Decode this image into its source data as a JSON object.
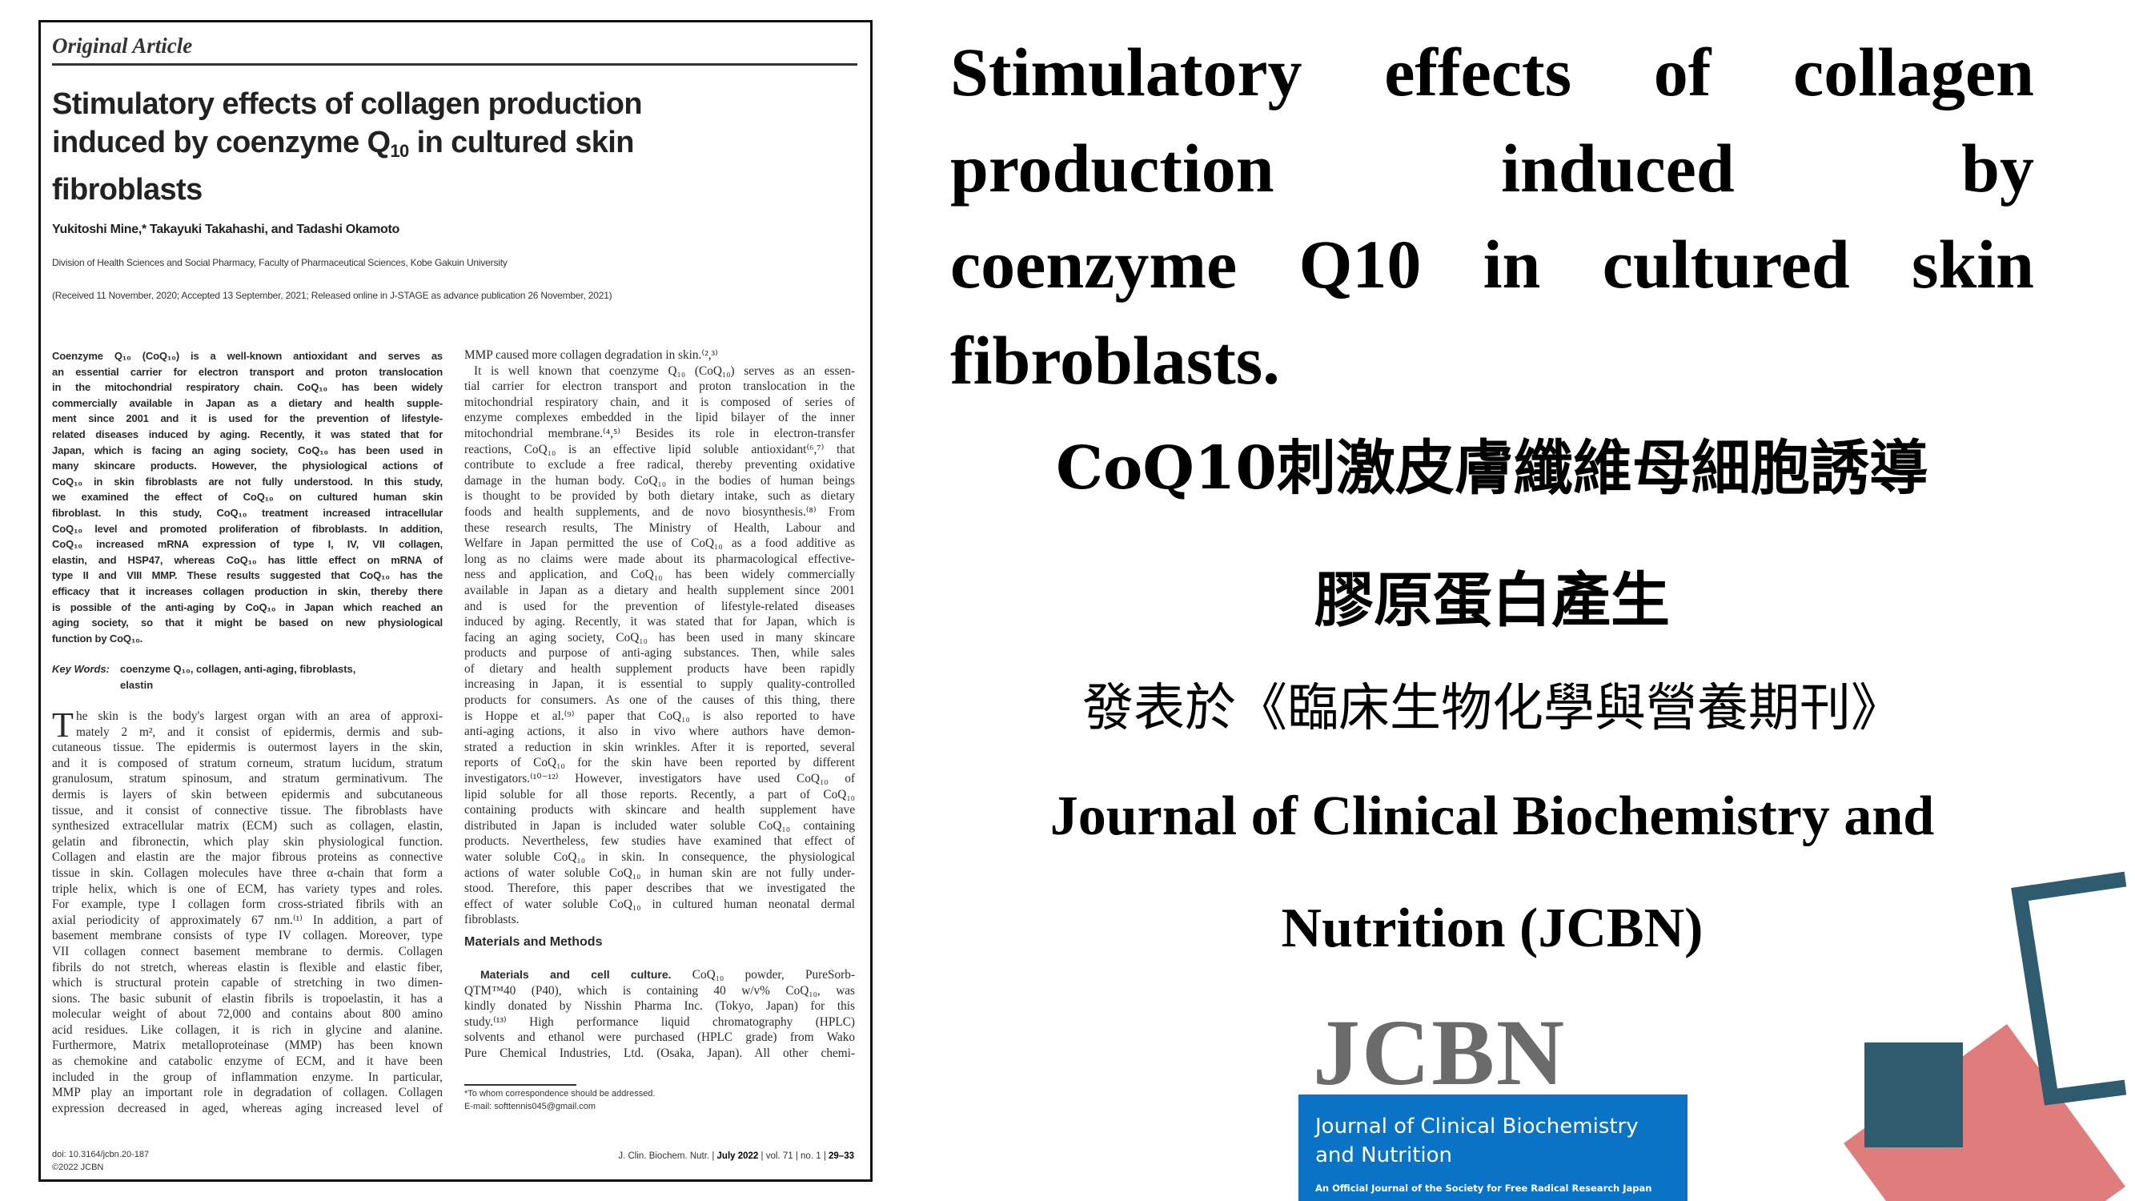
{
  "paper": {
    "kicker": "Original Article",
    "title_lines": [
      "Stimulatory effects of collagen production",
      "induced by coenzyme Q",
      "in cultured skin",
      "fibroblasts"
    ],
    "title_sub": "10",
    "authors": "Yukitoshi Mine,* Takayuki Takahashi, and Tadashi Okamoto",
    "affiliation": "Division of Health Sciences and Social Pharmacy, Faculty of Pharmaceutical Sciences, Kobe Gakuin University",
    "received": "(Received 11 November, 2020; Accepted 13 September, 2021; Released online in J-STAGE as advance publication 26 November, 2021)",
    "abstract": [
      "Coenzyme Q₁₀ (CoQ₁₀) is a well-known antioxidant and serves as",
      "an essential carrier for electron transport and proton translocation",
      "in the mitochondrial respiratory chain. CoQ₁₀ has been widely",
      "commercially available in Japan as a dietary and health supple-",
      "ment since 2001 and it is used for the prevention of lifestyle-",
      "related diseases induced by aging. Recently, it was stated that for",
      "Japan, which is facing an aging society, CoQ₁₀ has been used in",
      "many skincare products. However, the physiological actions of",
      "CoQ₁₀ in skin fibroblasts are not fully understood. In this study,",
      "we examined the effect of CoQ₁₀ on cultured human skin",
      "fibroblast. In this study, CoQ₁₀ treatment increased intracellular",
      "CoQ₁₀ level and promoted proliferation of fibroblasts. In addition,",
      "CoQ₁₀ increased mRNA expression of type I, IV, VII collagen,",
      "elastin, and HSP47, whereas CoQ₁₀ has little effect on mRNA of",
      "type II and VIII MMP. These results suggested that CoQ₁₀ has the",
      "efficacy that it increases collagen production in skin, thereby there",
      "is possible of the anti-aging by CoQ₁₀ in Japan which reached an",
      "aging society, so that it might be based on new physiological",
      "function by CoQ₁₀."
    ],
    "keywords_label": "Key Words:",
    "keywords": [
      "coenzyme Q₁₀, collagen, anti-aging, fibroblasts,",
      "elastin"
    ],
    "dropcap": "T",
    "body_left": [
      "he skin is the body's largest organ with an area of approxi-",
      "mately 2 m², and it consist of epidermis, dermis and sub-",
      "cutaneous tissue. The epidermis is outermost layers in the skin,",
      "and it is composed of stratum corneum, stratum lucidum, stratum",
      "granulosum, stratum spinosum, and stratum germinativum. The",
      "dermis is layers of skin between epidermis and subcutaneous",
      "tissue, and it consist of connective tissue. The fibroblasts have",
      "synthesized extracellular matrix (ECM) such as collagen, elastin,",
      "gelatin and fibronectin, which play skin physiological function.",
      "Collagen and elastin are the major fibrous proteins as connective",
      "tissue in skin. Collagen molecules have three α-chain that form a",
      "triple helix, which is one of ECM, has variety types and roles.",
      "For example, type I collagen form cross-striated fibrils with an",
      "axial periodicity of approximately 67 nm.⁽¹⁾ In addition, a part of",
      "basement membrane consists of type IV collagen. Moreover, type",
      "VII collagen connect basement membrane to dermis. Collagen",
      "fibrils do not stretch, whereas elastin is flexible and elastic fiber,",
      "which is structural protein capable of stretching in two dimen-",
      "sions. The basic subunit of elastin fibrils is tropoelastin, it has a",
      "molecular weight of about 72,000 and contains about 800 amino",
      "acid residues. Like collagen, it is rich in glycine and alanine.",
      "Furthermore, Matrix metalloproteinase (MMP) has been known",
      "as chemokine and catabolic enzyme of ECM, and it have been",
      "included in the group of inflammation enzyme. In particular,",
      "MMP play an important role in degradation of collagen. Collagen",
      "expression decreased in aged, whereas aging increased level of"
    ],
    "body_right": [
      "MMP caused more collagen degradation in skin.⁽²,³⁾",
      "It is well known that coenzyme Q₁₀ (CoQ₁₀) serves as an essen-",
      "tial carrier for electron transport and proton translocation in the",
      "mitochondrial respiratory chain, and it is composed of series of",
      "enzyme complexes embedded in the lipid bilayer of the inner",
      "mitochondrial membrane.⁽⁴,⁵⁾ Besides its role in electron-transfer",
      "reactions, CoQ₁₀ is an effective lipid soluble antioxidant⁽⁶,⁷⁾ that",
      "contribute to exclude a free radical, thereby preventing oxidative",
      "damage in the human body. CoQ₁₀ in the bodies of human beings",
      "is thought to be provided by both dietary intake, such as dietary",
      "foods and health supplements, and de novo biosynthesis.⁽⁸⁾ From",
      "these research results, The Ministry of Health, Labour and",
      "Welfare in Japan permitted the use of CoQ₁₀ as a food additive as",
      "long as no claims were made about its pharmacological effective-",
      "ness and application, and CoQ₁₀ has been widely commercially",
      "available in Japan as a dietary and health supplement since 2001",
      "and is used for the prevention of lifestyle-related diseases",
      "induced by aging. Recently, it was stated that for Japan, which is",
      "facing an aging society, CoQ₁₀ has been used in many skincare",
      "products and purpose of anti-aging substances. Then, while sales",
      "of dietary and health supplement products have been rapidly",
      "increasing in Japan, it is essential to supply quality-controlled",
      "products for consumers. As one of the causes of this thing, there",
      "is Hoppe et al.⁽⁹⁾ paper that CoQ₁₀ is also reported to have",
      "anti-aging actions, it also in vivo where authors have demon-",
      "strated a reduction in skin wrinkles. After it is reported, several",
      "reports of CoQ₁₀ for the skin have been reported by different",
      "investigators.⁽¹⁰⁻¹²⁾ However, investigators have used CoQ₁₀ of",
      "lipid soluble for all those reports. Recently, a part of CoQ₁₀",
      "containing products with skincare and health supplement have",
      "distributed in Japan is included water soluble CoQ₁₀ containing",
      "products. Nevertheless, few studies have examined that effect of",
      "water soluble CoQ₁₀ in skin. In consequence, the physiological",
      "actions of water soluble CoQ₁₀ in human skin are not fully under-",
      "stood. Therefore, this paper describes that we investigated the",
      "effect of water soluble CoQ₁₀ in cultured human neonatal dermal",
      "fibroblasts."
    ],
    "methods_heading": "Materials and Methods",
    "methods_subhead": "Materials and cell culture.",
    "methods": [
      "CoQ₁₀ powder, PureSorb-",
      "QTM™40 (P40), which is containing 40 w/v% CoQ₁₀, was",
      "kindly donated by Nisshin Pharma Inc. (Tokyo, Japan) for this",
      "study.⁽¹³⁾ High performance liquid chromatography (HPLC)",
      "solvents and ethanol were purchased (HPLC grade) from Wako",
      "Pure Chemical Industries, Ltd. (Osaka, Japan). All other chemi-"
    ],
    "footnote": [
      "*To whom correspondence should be addressed.",
      "E-mail: softtennis045@gmail.com"
    ],
    "doi": "doi: 10.3164/jcbn.20-187",
    "copyright": "©2022 JCBN",
    "journal_footer": {
      "journal": "J. Clin. Biochem. Nutr.",
      "date": "July 2022",
      "volume": "vol. 71",
      "issue": "no. 1",
      "pages": "29–33",
      "separator": "|"
    }
  },
  "slide": {
    "title_lines": [
      "Stimulatory effects of collagen",
      "production induced by",
      "coenzyme Q10 in cultured skin",
      "fibroblasts."
    ],
    "zh_title_1": "CoQ10刺激皮膚纖維母細胞誘導",
    "zh_title_2": "膠原蛋白產生",
    "zh_published": "發表於《臨床生物化學與營養期刊》",
    "journal_line_1": "Journal of Clinical Biochemistry and",
    "journal_line_2": "Nutrition (JCBN)",
    "logo": {
      "wordmark": "JCBN",
      "name_lines": [
        "Journal of Clinical Biochemistry",
        "and Nutrition"
      ],
      "tagline": "An Official Journal of the Society for Free Radical Research Japan"
    }
  },
  "colors": {
    "teal": "#2e5c6e",
    "coral": "#df7c7c",
    "logo_blue": "#0a73c6",
    "logo_gray": "#6b6b6b"
  }
}
